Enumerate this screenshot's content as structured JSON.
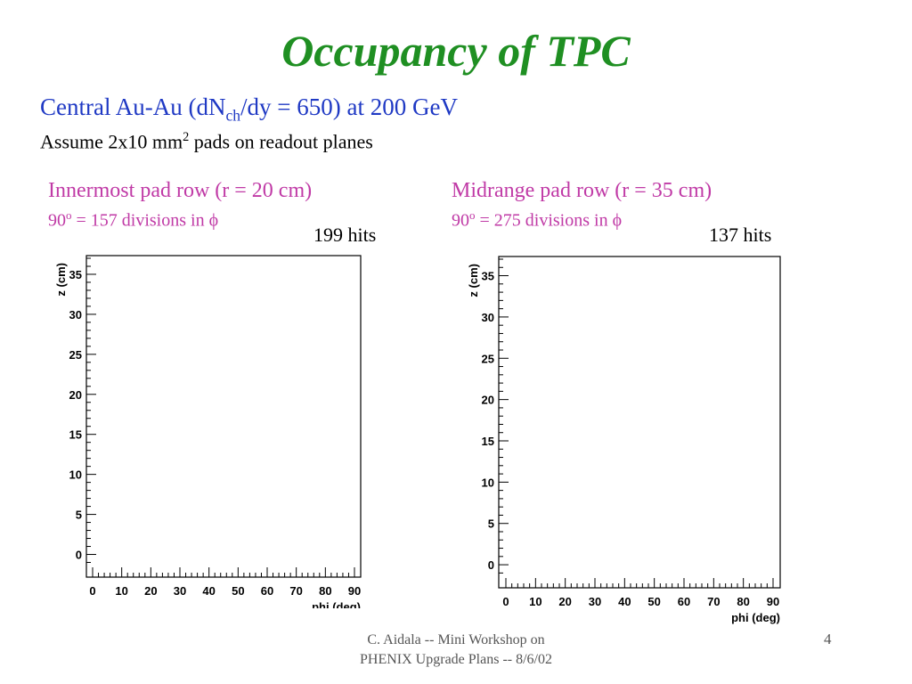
{
  "slide": {
    "title": "Occupancy of TPC",
    "subtitle": {
      "prefix": "Central Au-Au (dN",
      "subscript": "ch",
      "suffix": "/dy = 650) at 200 GeV"
    },
    "assumption": {
      "prefix": "Assume 2x10 mm",
      "superscript": "2",
      "suffix": " pads on readout planes"
    },
    "footer": {
      "line1": "C. Aidala -- Mini Workshop on",
      "line2": "PHENIX Upgrade Plans -- 8/6/02"
    },
    "page_number": "4",
    "colors": {
      "title": "#1f8f22",
      "subtitle": "#1f39c4",
      "panel_heading": "#c03aa6",
      "footer": "#555555"
    }
  },
  "panels": [
    {
      "heading": "Innermost pad row (r = 20 cm)",
      "divisions": {
        "base": "90",
        "superscript": "o",
        "rest": " = 157 divisions in ϕ"
      },
      "hits": "199 hits"
    },
    {
      "heading": "Midrange pad row (r = 35 cm)",
      "divisions": {
        "base": "90",
        "superscript": "o",
        "rest": " = 275 divisions in ϕ"
      },
      "hits": "137 hits"
    }
  ],
  "chart_data": [
    {
      "type": "scatter",
      "xlabel": "phi (deg)",
      "ylabel": "z (cm)",
      "xlim": [
        0,
        90
      ],
      "ylim": [
        -1.5,
        37
      ],
      "xticks": [
        0,
        10,
        20,
        30,
        40,
        50,
        60,
        70,
        80,
        90
      ],
      "yticks": [
        0,
        5,
        10,
        15,
        20,
        25,
        30,
        35
      ],
      "marker": "x",
      "points": []
    },
    {
      "type": "scatter",
      "xlabel": "phi (deg)",
      "ylabel": "z (cm)",
      "xlim": [
        0,
        90
      ],
      "ylim": [
        -1.5,
        37
      ],
      "xticks": [
        0,
        10,
        20,
        30,
        40,
        50,
        60,
        70,
        80,
        90
      ],
      "yticks": [
        0,
        5,
        10,
        15,
        20,
        25,
        30,
        35
      ],
      "marker": "x",
      "points": []
    }
  ]
}
